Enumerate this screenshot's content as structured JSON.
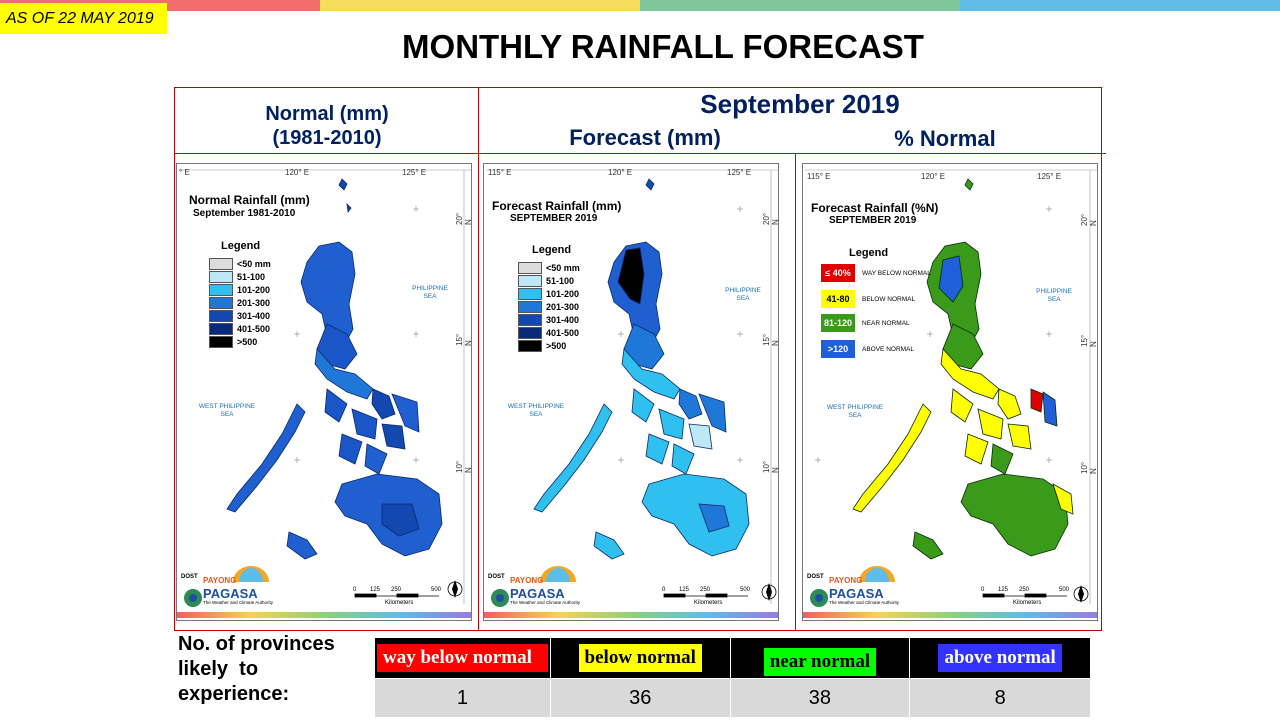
{
  "as_of": "AS OF 22 MAY 2019",
  "title": "MONTHLY RAINFALL FORECAST",
  "header": {
    "normal_title": "Normal (mm)",
    "normal_period": "(1981-2010)",
    "month": "September 2019",
    "forecast_title": "Forecast (mm)",
    "percent_title": "% Normal"
  },
  "panels": {
    "normal": {
      "title": "Normal Rainfall (mm)",
      "subtitle": "September 1981-2010",
      "legend_title": "Legend",
      "legend": [
        {
          "label": "<50 mm",
          "color": "#dcdcdc"
        },
        {
          "label": "51-100",
          "color": "#bfe8f7"
        },
        {
          "label": "101-200",
          "color": "#2fc0ef"
        },
        {
          "label": "201-300",
          "color": "#1f78d8"
        },
        {
          "label": "301-400",
          "color": "#1248b0"
        },
        {
          "label": "401-500",
          "color": "#0a2a78"
        },
        {
          "label": ">500",
          "color": "#000000"
        }
      ],
      "coords_top": [
        "° E",
        "120° E",
        "125° E"
      ],
      "coords_right": [
        "20° N",
        "15° N",
        "10° N"
      ],
      "sea_labels": {
        "east": "PHILIPPINE\nSEA",
        "west": "WEST PHILIPPINE\nSEA"
      }
    },
    "forecast": {
      "title": "Forecast Rainfall (mm)",
      "subtitle": "SEPTEMBER 2019",
      "legend_title": "Legend",
      "legend": [
        {
          "label": "<50 mm",
          "color": "#dcdcdc"
        },
        {
          "label": "51-100",
          "color": "#bfe8f7"
        },
        {
          "label": "101-200",
          "color": "#2fc0ef"
        },
        {
          "label": "201-300",
          "color": "#1f78d8"
        },
        {
          "label": "301-400",
          "color": "#1248b0"
        },
        {
          "label": "401-500",
          "color": "#0a2a78"
        },
        {
          "label": ">500",
          "color": "#000000"
        }
      ],
      "coords_top": [
        "115° E",
        "120° E",
        "125° E"
      ],
      "coords_right": [
        "20° N",
        "15° N",
        "10° N"
      ],
      "sea_labels": {
        "east": "PHILIPPINE\nSEA",
        "west": "WEST PHILIPPINE\nSEA"
      }
    },
    "percent": {
      "title": "Forecast Rainfall (%N)",
      "subtitle": "SEPTEMBER 2019",
      "legend_title": "Legend",
      "legend": [
        {
          "box": "≤ 40%",
          "label": "WAY BELOW NORMAL",
          "color": "#e00000",
          "text_color": "#ffffff"
        },
        {
          "box": "41-80",
          "label": "BELOW NORMAL",
          "color": "#ffff00",
          "text_color": "#000000"
        },
        {
          "box": "81-120",
          "label": "NEAR NORMAL",
          "color": "#3a9a1a",
          "text_color": "#ffffff"
        },
        {
          "box": ">120",
          "label": "ABOVE NORMAL",
          "color": "#1f5fd8",
          "text_color": "#ffffff"
        }
      ],
      "coords_top": [
        "115° E",
        "120° E",
        "125° E"
      ],
      "coords_right": [
        "20° N",
        "15° N",
        "10° N"
      ],
      "sea_labels": {
        "east": "PHILIPPINE\nSEA",
        "west": "WEST PHILIPPINE\nSEA"
      }
    }
  },
  "scale": {
    "ticks": [
      "0",
      "125",
      "250",
      "500"
    ],
    "unit": "Kilometers"
  },
  "logo": {
    "dost": "DOST",
    "payong": "PAYONG",
    "pagasa": "PAGASA",
    "tagline": "The Weather and Climate Authority"
  },
  "provinces": {
    "question": [
      "No. of provinces",
      "likely  to",
      "experience:"
    ],
    "categories": [
      {
        "label": "way below normal",
        "count": "1",
        "bg": "#ff0000",
        "fg": "#ffffff"
      },
      {
        "label": "below normal",
        "count": "36",
        "bg": "#ffff00",
        "fg": "#000000"
      },
      {
        "label": "near normal",
        "count": "38",
        "bg": "#00ff00",
        "fg": "#000000"
      },
      {
        "label": "above normal",
        "count": "8",
        "bg": "#3333ff",
        "fg": "#ffffff"
      }
    ]
  },
  "top_bar_colors": [
    "#f26d6d",
    "#f5dc5a",
    "#7dc59a",
    "#5dbde8"
  ]
}
